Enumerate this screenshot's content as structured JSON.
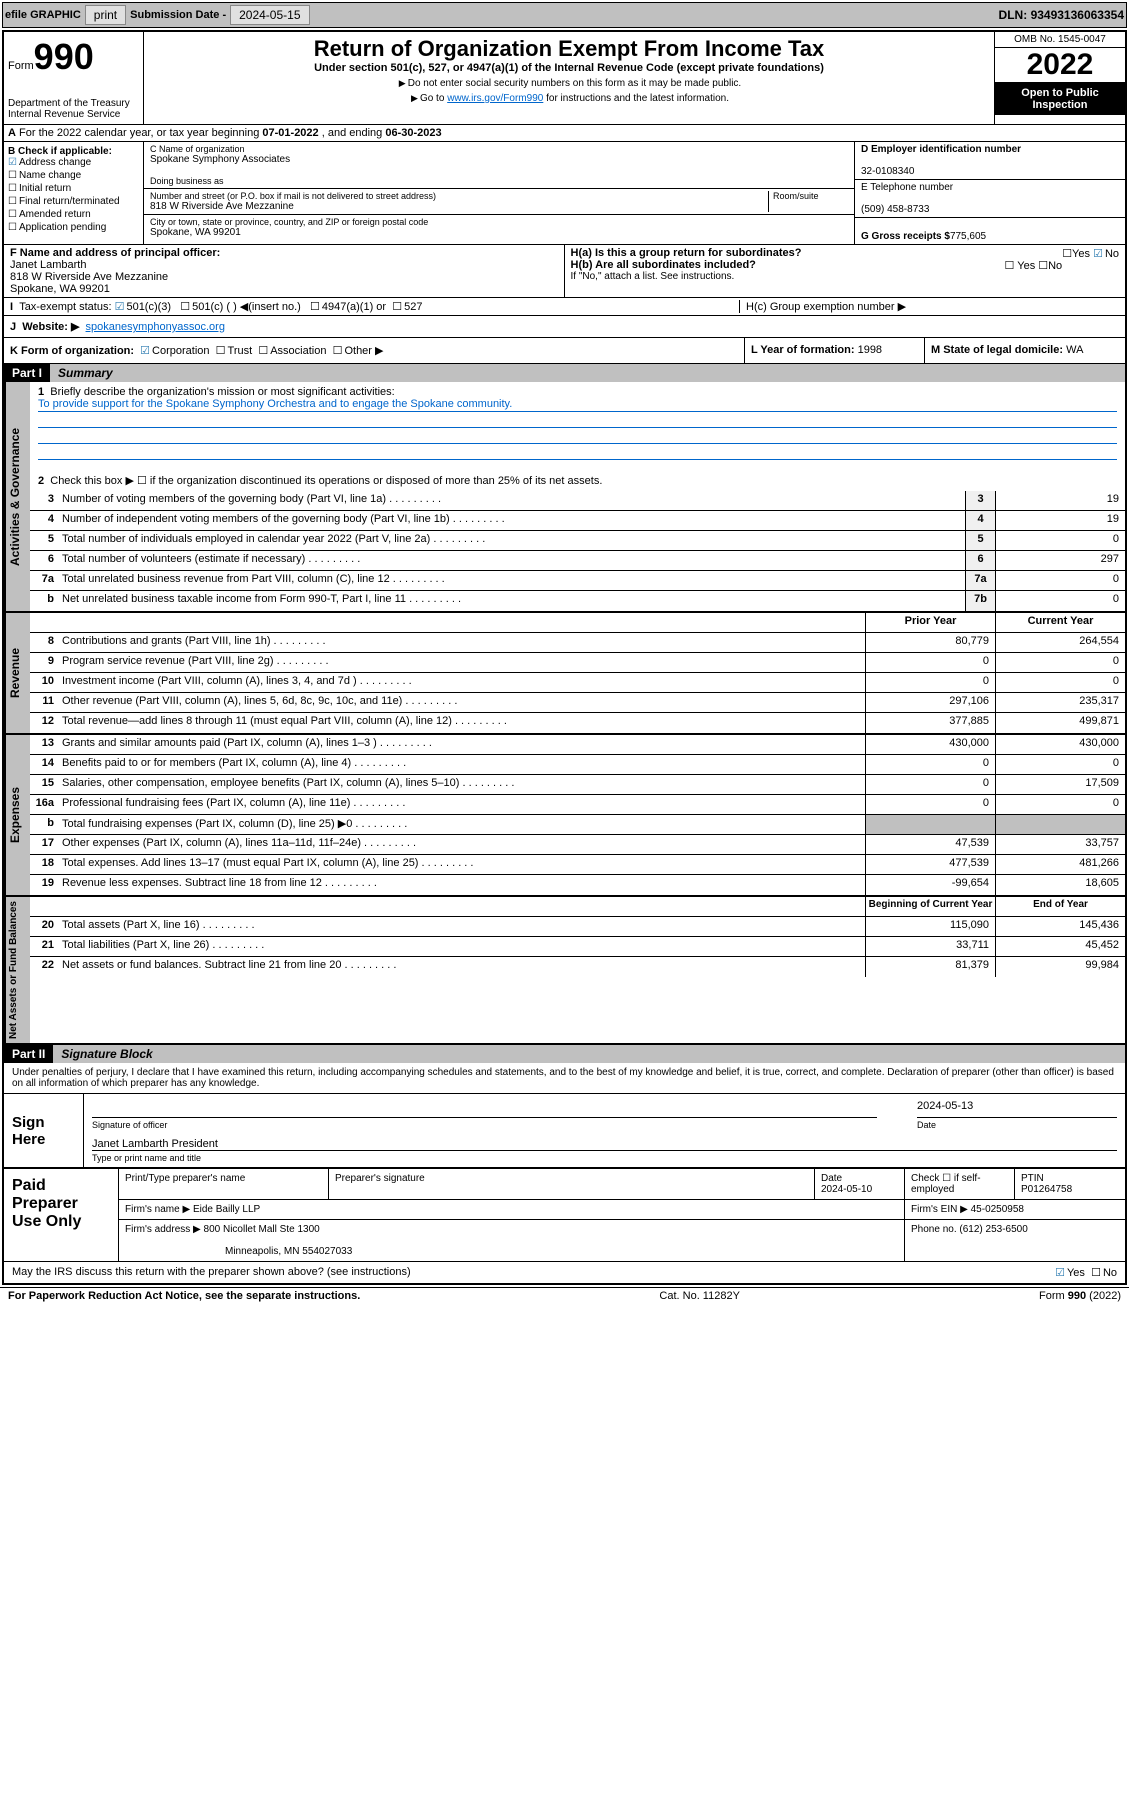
{
  "topbar": {
    "efile_label": "efile GRAPHIC",
    "print_btn": "print",
    "submission_label": "Submission Date -",
    "submission_date": "2024-05-15",
    "dln_label": "DLN:",
    "dln": "93493136063354"
  },
  "header": {
    "form_label": "Form",
    "form_num": "990",
    "dept": "Department of the Treasury\nInternal Revenue Service",
    "title": "Return of Organization Exempt From Income Tax",
    "subtitle": "Under section 501(c), 527, or 4947(a)(1) of the Internal Revenue Code (except private foundations)",
    "note1": "Do not enter social security numbers on this form as it may be made public.",
    "note2_pre": "Go to ",
    "note2_link": "www.irs.gov/Form990",
    "note2_post": " for instructions and the latest information.",
    "omb": "OMB No. 1545-0047",
    "year": "2022",
    "open": "Open to Public Inspection"
  },
  "rowA": {
    "text": "For the 2022 calendar year, or tax year beginning ",
    "begin": "07-01-2022",
    "mid": " , and ending ",
    "end": "06-30-2023"
  },
  "colB": {
    "label": "B Check if applicable:",
    "items": [
      "Address change",
      "Name change",
      "Initial return",
      "Final return/terminated",
      "Amended return",
      "Application pending"
    ],
    "checked_index": 0
  },
  "colC": {
    "name_label": "C Name of organization",
    "name": "Spokane Symphony Associates",
    "dba_label": "Doing business as",
    "dba": "",
    "street_label": "Number and street (or P.O. box if mail is not delivered to street address)",
    "room_label": "Room/suite",
    "street": "818 W Riverside Ave Mezzanine",
    "city_label": "City or town, state or province, country, and ZIP or foreign postal code",
    "city": "Spokane, WA  99201"
  },
  "colD": {
    "ein_label": "D Employer identification number",
    "ein": "32-0108340",
    "phone_label": "E Telephone number",
    "phone": "(509) 458-8733",
    "gross_label": "G Gross receipts $",
    "gross": "775,605"
  },
  "rowF": {
    "label": "F  Name and address of principal officer:",
    "name": "Janet Lambarth",
    "addr1": "818 W Riverside Ave Mezzanine",
    "addr2": "Spokane, WA  99201",
    "ha": "H(a)  Is this a group return for subordinates?",
    "ha_ans": "No",
    "hb": "H(b)  Are all subordinates included?",
    "hb_note": "If \"No,\" attach a list. See instructions."
  },
  "rowI": {
    "label": "Tax-exempt status:",
    "opts": [
      "501(c)(3)",
      "501(c) (  ) ◀(insert no.)",
      "4947(a)(1) or",
      "527"
    ],
    "hc": "H(c)  Group exemption number ▶"
  },
  "rowJ": {
    "label": "Website: ▶",
    "value": "spokanesymphonyassoc.org"
  },
  "rowK": {
    "label": "K Form of organization:",
    "opts": [
      "Corporation",
      "Trust",
      "Association",
      "Other ▶"
    ],
    "L_label": "L Year of formation:",
    "L_val": "1998",
    "M_label": "M State of legal domicile:",
    "M_val": "WA"
  },
  "partI": {
    "num": "Part I",
    "title": "Summary"
  },
  "s1": {
    "sidelabel": "Activities & Governance",
    "l1_label": "Briefly describe the organization's mission or most significant activities:",
    "l1_text": "To provide support for the Spokane Symphony Orchestra and to engage the Spokane community.",
    "l2": "Check this box ▶ ☐  if the organization discontinued its operations or disposed of more than 25% of its net assets.",
    "rows": [
      {
        "n": "3",
        "t": "Number of voting members of the governing body (Part VI, line 1a)",
        "box": "3",
        "v": "19"
      },
      {
        "n": "4",
        "t": "Number of independent voting members of the governing body (Part VI, line 1b)",
        "box": "4",
        "v": "19"
      },
      {
        "n": "5",
        "t": "Total number of individuals employed in calendar year 2022 (Part V, line 2a)",
        "box": "5",
        "v": "0"
      },
      {
        "n": "6",
        "t": "Total number of volunteers (estimate if necessary)",
        "box": "6",
        "v": "297"
      },
      {
        "n": "7a",
        "t": "Total unrelated business revenue from Part VIII, column (C), line 12",
        "box": "7a",
        "v": "0"
      },
      {
        "n": "b",
        "t": "Net unrelated business taxable income from Form 990-T, Part I, line 11",
        "box": "7b",
        "v": "0"
      }
    ]
  },
  "s2": {
    "sidelabel": "Revenue",
    "hdr_prior": "Prior Year",
    "hdr_curr": "Current Year",
    "rows": [
      {
        "n": "8",
        "t": "Contributions and grants (Part VIII, line 1h)",
        "p": "80,779",
        "c": "264,554"
      },
      {
        "n": "9",
        "t": "Program service revenue (Part VIII, line 2g)",
        "p": "0",
        "c": "0"
      },
      {
        "n": "10",
        "t": "Investment income (Part VIII, column (A), lines 3, 4, and 7d )",
        "p": "0",
        "c": "0"
      },
      {
        "n": "11",
        "t": "Other revenue (Part VIII, column (A), lines 5, 6d, 8c, 9c, 10c, and 11e)",
        "p": "297,106",
        "c": "235,317"
      },
      {
        "n": "12",
        "t": "Total revenue—add lines 8 through 11 (must equal Part VIII, column (A), line 12)",
        "p": "377,885",
        "c": "499,871"
      }
    ]
  },
  "s3": {
    "sidelabel": "Expenses",
    "rows": [
      {
        "n": "13",
        "t": "Grants and similar amounts paid (Part IX, column (A), lines 1–3 )",
        "p": "430,000",
        "c": "430,000"
      },
      {
        "n": "14",
        "t": "Benefits paid to or for members (Part IX, column (A), line 4)",
        "p": "0",
        "c": "0"
      },
      {
        "n": "15",
        "t": "Salaries, other compensation, employee benefits (Part IX, column (A), lines 5–10)",
        "p": "0",
        "c": "17,509"
      },
      {
        "n": "16a",
        "t": "Professional fundraising fees (Part IX, column (A), line 11e)",
        "p": "0",
        "c": "0"
      },
      {
        "n": "b",
        "t": "Total fundraising expenses (Part IX, column (D), line 25) ▶0",
        "p": "",
        "c": "",
        "shade": true
      },
      {
        "n": "17",
        "t": "Other expenses (Part IX, column (A), lines 11a–11d, 11f–24e)",
        "p": "47,539",
        "c": "33,757"
      },
      {
        "n": "18",
        "t": "Total expenses. Add lines 13–17 (must equal Part IX, column (A), line 25)",
        "p": "477,539",
        "c": "481,266"
      },
      {
        "n": "19",
        "t": "Revenue less expenses. Subtract line 18 from line 12",
        "p": "-99,654",
        "c": "18,605"
      }
    ]
  },
  "s4": {
    "sidelabel": "Net Assets or Fund Balances",
    "hdr_prior": "Beginning of Current Year",
    "hdr_curr": "End of Year",
    "rows": [
      {
        "n": "20",
        "t": "Total assets (Part X, line 16)",
        "p": "115,090",
        "c": "145,436"
      },
      {
        "n": "21",
        "t": "Total liabilities (Part X, line 26)",
        "p": "33,711",
        "c": "45,452"
      },
      {
        "n": "22",
        "t": "Net assets or fund balances. Subtract line 21 from line 20",
        "p": "81,379",
        "c": "99,984"
      }
    ]
  },
  "partII": {
    "num": "Part II",
    "title": "Signature Block"
  },
  "penalties": "Under penalties of perjury, I declare that I have examined this return, including accompanying schedules and statements, and to the best of my knowledge and belief, it is true, correct, and complete. Declaration of preparer (other than officer) is based on all information of which preparer has any knowledge.",
  "sign": {
    "left": "Sign Here",
    "sig_label": "Signature of officer",
    "date": "2024-05-13",
    "date_label": "Date",
    "name": "Janet Lambarth President",
    "name_label": "Type or print name and title"
  },
  "prep": {
    "left": "Paid Preparer Use Only",
    "h1": "Print/Type preparer's name",
    "h2": "Preparer's signature",
    "h3_label": "Date",
    "h3": "2024-05-10",
    "h4": "Check ☐ if self-employed",
    "h5_label": "PTIN",
    "h5": "P01264758",
    "firm_label": "Firm's name      ▶",
    "firm": "Eide Bailly LLP",
    "ein_label": "Firm's EIN ▶",
    "ein": "45-0250958",
    "addr_label": "Firm's address ▶",
    "addr1": "800 Nicollet Mall Ste 1300",
    "addr2": "Minneapolis, MN  554027033",
    "phone_label": "Phone no.",
    "phone": "(612) 253-6500"
  },
  "may_discuss": "May the IRS discuss this return with the preparer shown above? (see instructions)",
  "may_discuss_ans": "Yes",
  "footer": {
    "left": "For Paperwork Reduction Act Notice, see the separate instructions.",
    "mid": "Cat. No. 11282Y",
    "right": "Form 990 (2022)"
  },
  "colors": {
    "link": "#0066cc",
    "check": "#2a7ab0",
    "gray": "#c0c0c0"
  }
}
